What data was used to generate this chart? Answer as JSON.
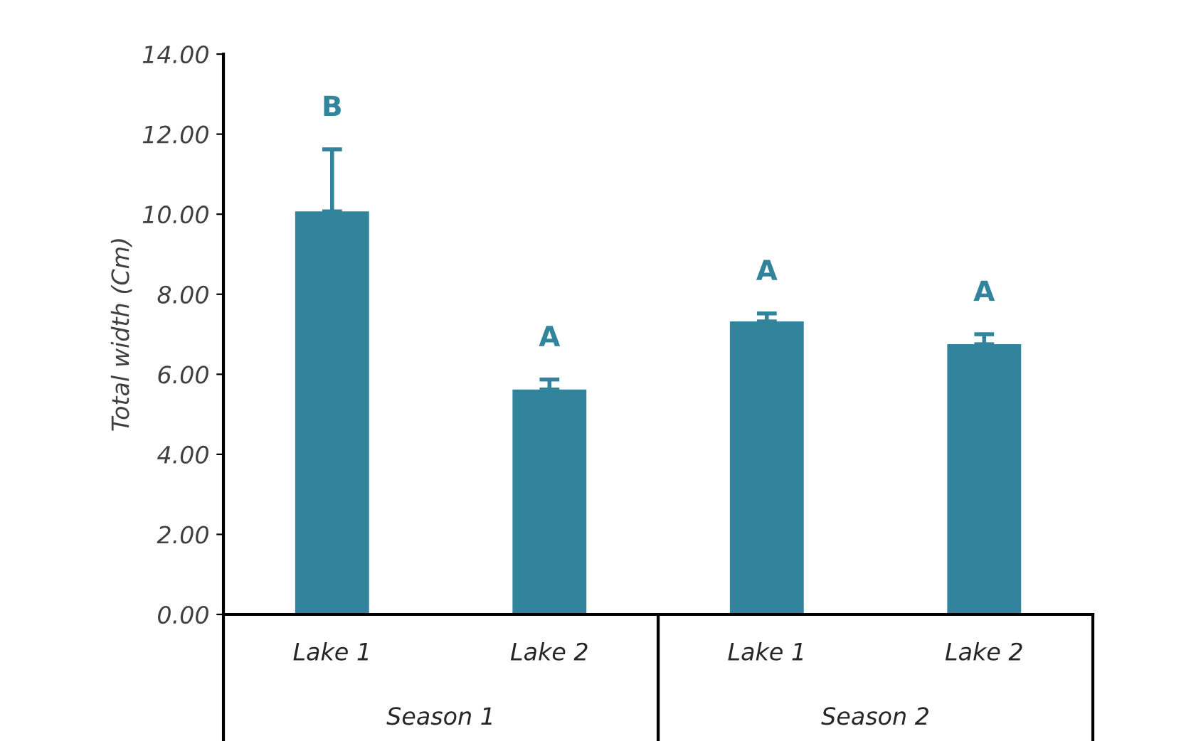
{
  "chart_data": {
    "type": "bar",
    "ylabel": "Total width (Cm)",
    "categories": [
      "Lake 1",
      "Lake 2",
      "Lake 1",
      "Lake 2"
    ],
    "values": [
      10.07,
      5.62,
      7.32,
      6.75
    ],
    "errors": [
      1.55,
      0.25,
      0.2,
      0.25
    ],
    "color": "#31849b",
    "annotations": [
      "B",
      "A",
      "A",
      "A",
      "Season 1",
      "Season 2"
    ],
    "ylim": [
      0,
      14
    ],
    "yticks": [
      {
        "value": 0,
        "label": "0.00"
      },
      {
        "value": 2,
        "label": "2.00"
      },
      {
        "value": 4,
        "label": "4.00"
      },
      {
        "value": 6,
        "label": "6.00"
      },
      {
        "value": 8,
        "label": "8.00"
      },
      {
        "value": 10,
        "label": "10.00"
      },
      {
        "value": 12,
        "label": "12.00"
      },
      {
        "value": 14,
        "label": "14.00"
      }
    ],
    "grid": false
  }
}
